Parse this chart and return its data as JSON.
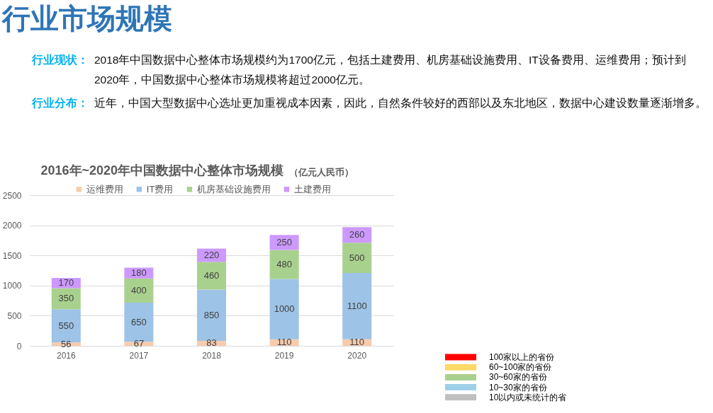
{
  "chart_data": [
    {
      "type": "bar",
      "title": "2016年~2020年中国数据中心整体市场规模",
      "subtitle": "（亿元人民币）",
      "annotations": [
        "行业市场规模",
        "行业现状：",
        "2018年中国数据中心整体市场规模约为1700亿元，包括土建费用、机房基础设施费用、IT设备费用、运维费用；预计到2020年，中国数据中心整体市场规模将超过2000亿元。",
        "行业分布：",
        "近年，中国大型数据中心选址更加重视成本因素，因此，自然条件较好的西部以及东北地区，数据中心建设数量逐渐增多。"
      ],
      "categories": [
        "2016",
        "2017",
        "2018",
        "2019",
        "2020"
      ],
      "series": [
        {
          "name": "运维费用",
          "color": "#f8cbad",
          "values": [
            56,
            67,
            83,
            110,
            110
          ]
        },
        {
          "name": "IT费用",
          "color": "#9dc3e6",
          "values": [
            550,
            650,
            850,
            1000,
            1100
          ]
        },
        {
          "name": "机房基础设施费用",
          "color": "#a9d18e",
          "values": [
            350,
            400,
            460,
            480,
            500
          ]
        },
        {
          "name": "土建费用",
          "color": "#cc99ff",
          "values": [
            170,
            180,
            220,
            250,
            260
          ]
        }
      ],
      "stacked": true,
      "data_labels": true,
      "ylim": [
        0,
        2500
      ],
      "yticks": [
        0,
        500,
        1000,
        1500,
        2000,
        2500
      ],
      "grid": "y",
      "legend": "top"
    },
    {
      "type": "other",
      "categories": [
        "100家以上的省份",
        "60~100家的省份",
        "30~60家的省份",
        "10~30家的省份",
        "10以内或未统计的省"
      ],
      "colors": [
        "#ff0000",
        "#ffd966",
        "#a9d18e",
        "#9dd0e8",
        "#bfbfbf"
      ]
    }
  ]
}
